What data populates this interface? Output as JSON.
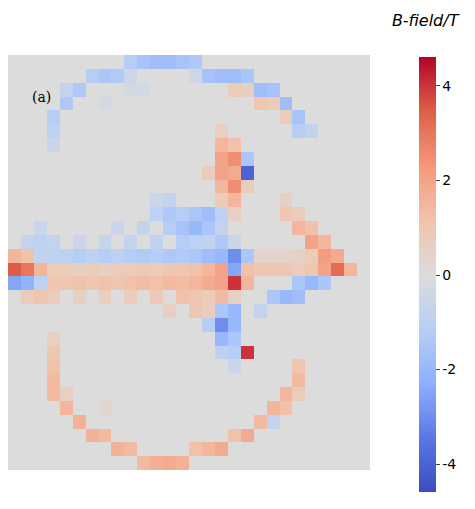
{
  "chart_data": {
    "type": "heatmap",
    "panel_label": "(a)",
    "colorbar_title": "B-field/T",
    "colorbar_range": [
      -4.6,
      4.6
    ],
    "colorbar_ticks": [
      -4,
      -2,
      0,
      2,
      4
    ],
    "tick_labels": false,
    "cells": [
      [
        0,
        0,
        0,
        0,
        0,
        0,
        0,
        0,
        0,
        -1.2,
        -1.6,
        -1.8,
        -1.8,
        -1.6,
        -1.4,
        0,
        0,
        0,
        0,
        0,
        0,
        0,
        0,
        0,
        0,
        0,
        0,
        0
      ],
      [
        0,
        0,
        0,
        0,
        0,
        0,
        -1.2,
        -1.5,
        -1.3,
        -0.5,
        0,
        0,
        0,
        0,
        -0.5,
        -1.6,
        -1.8,
        -1.8,
        -1.5,
        0,
        0,
        0,
        0,
        0,
        0,
        0,
        0,
        0
      ],
      [
        0,
        0,
        0,
        0,
        -0.8,
        -1.4,
        0,
        0,
        0,
        -0.3,
        -0.3,
        0,
        0,
        0,
        0,
        0,
        0,
        0.8,
        0.6,
        -1.8,
        -1.6,
        0,
        0,
        0,
        0,
        0,
        0,
        0
      ],
      [
        0,
        0,
        0,
        0,
        -1.4,
        0,
        0,
        -0.3,
        0,
        0,
        0,
        0,
        0,
        0,
        0,
        0,
        0,
        0,
        0,
        1.0,
        0.8,
        -1.8,
        0,
        0,
        0,
        0,
        0,
        0
      ],
      [
        0,
        0,
        0,
        -1.2,
        0,
        0,
        0,
        0,
        0,
        0,
        0,
        0,
        0,
        0,
        0,
        0,
        0,
        0,
        0,
        0,
        0,
        0.8,
        -1.6,
        0,
        0,
        0,
        0,
        0
      ],
      [
        0,
        0,
        0,
        -1.0,
        0,
        0,
        0,
        0,
        0,
        0,
        0,
        0,
        0,
        0,
        0,
        0,
        0.6,
        0,
        0,
        0,
        0,
        0,
        -1.2,
        -0.8,
        0,
        0,
        0,
        0
      ],
      [
        0,
        0,
        0,
        -0.6,
        0,
        0,
        0,
        0,
        0,
        0,
        0,
        0,
        0,
        0,
        0,
        0,
        1.5,
        1.2,
        0,
        0,
        0,
        0,
        0,
        0,
        0,
        0,
        0,
        0
      ],
      [
        0,
        0,
        0,
        0,
        0,
        0,
        0,
        0,
        0,
        0,
        0,
        0,
        0,
        0,
        0,
        0,
        2.0,
        2.5,
        -1.5,
        0,
        0,
        0,
        0,
        0,
        0,
        0,
        0,
        0
      ],
      [
        0,
        0,
        0,
        0,
        0,
        0,
        0,
        0,
        0,
        0,
        0,
        0,
        0,
        0,
        0,
        0.8,
        2.0,
        1.8,
        -4.0,
        0,
        0,
        0,
        0,
        0,
        0,
        0,
        0,
        0
      ],
      [
        0,
        0,
        0,
        0,
        0,
        0,
        0,
        0,
        0,
        0,
        0,
        0,
        0,
        0,
        0,
        0,
        1.5,
        2.5,
        0.8,
        0,
        0,
        0,
        0,
        0,
        0,
        0,
        0,
        0
      ],
      [
        0,
        0,
        0,
        0,
        0,
        0,
        0,
        0,
        0,
        0,
        0,
        -0.6,
        -0.8,
        0,
        0,
        0,
        0.8,
        1.5,
        0,
        0,
        0,
        0.6,
        0,
        0,
        0,
        0,
        0,
        0
      ],
      [
        0,
        0,
        0,
        0,
        0,
        0,
        0,
        0,
        0,
        0,
        0,
        -1.0,
        -1.4,
        -1.2,
        -1.5,
        -1.8,
        -1.0,
        0.6,
        0,
        0,
        0,
        1.0,
        0.8,
        0,
        0,
        0,
        0,
        0
      ],
      [
        0,
        0,
        -0.6,
        0,
        0,
        0,
        0,
        0,
        -0.6,
        0,
        -0.8,
        0,
        -1.2,
        -1.6,
        -2.0,
        -1.5,
        -0.8,
        0,
        0,
        0,
        0,
        0,
        1.5,
        1.2,
        0,
        0,
        0,
        0
      ],
      [
        0,
        -0.8,
        -1.0,
        -0.8,
        0,
        -0.6,
        0,
        -0.7,
        0,
        -0.8,
        0,
        -0.9,
        0,
        -1.2,
        -1.0,
        -0.8,
        -1.4,
        -0.6,
        0,
        0,
        0,
        0,
        0,
        2.0,
        1.5,
        0,
        0,
        0
      ],
      [
        1.5,
        1.2,
        -0.8,
        -1.0,
        -1.0,
        -1.2,
        -1.0,
        -1.2,
        -1.0,
        -1.2,
        -1.3,
        -1.2,
        -1.4,
        -1.3,
        -1.5,
        -1.8,
        -2.0,
        -3.0,
        -1.5,
        0.4,
        0.4,
        0.4,
        0.5,
        0.8,
        2.2,
        1.8,
        0,
        0
      ],
      [
        3.5,
        3.0,
        1.5,
        0.8,
        0.8,
        0.6,
        0.8,
        0.6,
        0.8,
        0.8,
        0.9,
        0.8,
        1.0,
        1.0,
        1.2,
        1.5,
        2.0,
        -2.5,
        1.2,
        1.0,
        1.0,
        1.0,
        0.8,
        1.0,
        2.0,
        3.2,
        1.5,
        0
      ],
      [
        -2.5,
        -2.2,
        -1.0,
        1.0,
        1.0,
        1.2,
        1.0,
        1.2,
        1.0,
        1.2,
        1.3,
        1.2,
        1.4,
        1.3,
        1.5,
        1.8,
        2.0,
        4.0,
        1.5,
        0,
        0,
        0,
        -1.5,
        -2.0,
        -1.5,
        0,
        0,
        0
      ],
      [
        0,
        0.8,
        1.0,
        0.8,
        0,
        0.6,
        0,
        0.7,
        0,
        0.8,
        0,
        0.9,
        0,
        1.2,
        1.0,
        0.8,
        1.4,
        0.6,
        0,
        0,
        -1.5,
        -2.0,
        -1.8,
        0,
        0,
        0,
        0,
        0
      ],
      [
        0,
        0,
        0,
        0,
        0,
        0,
        0,
        0,
        0,
        0,
        0,
        0,
        0.6,
        0,
        1.0,
        0.8,
        -1.5,
        -2.0,
        0,
        -0.8,
        0,
        0,
        0,
        0,
        0,
        0,
        0,
        0
      ],
      [
        0,
        0,
        0,
        0,
        0,
        0,
        0,
        0,
        0,
        0,
        0,
        0,
        0,
        0,
        0,
        -1.2,
        -3.0,
        -2.0,
        0,
        0,
        0,
        0,
        0,
        0,
        0,
        0,
        0,
        0
      ],
      [
        0,
        0,
        0,
        0.6,
        0,
        0,
        0,
        0,
        0,
        0,
        0,
        0,
        0,
        0,
        0,
        0,
        -2.0,
        -1.5,
        0,
        0,
        0,
        0,
        0,
        0,
        0,
        0,
        0,
        0
      ],
      [
        0,
        0,
        0,
        1.0,
        0,
        0,
        0,
        0,
        0,
        0,
        0,
        0,
        0,
        0,
        0,
        0,
        -1.0,
        -1.2,
        4.0,
        0,
        0,
        0,
        0,
        0,
        0,
        0,
        0,
        0
      ],
      [
        0,
        0,
        0,
        1.2,
        0,
        0,
        0,
        0,
        0,
        0,
        0,
        0,
        0,
        0,
        0,
        0,
        0,
        -0.6,
        0,
        0,
        0,
        0,
        1.0,
        0,
        0,
        0,
        0,
        0
      ],
      [
        0,
        0,
        0,
        1.4,
        0,
        0,
        0,
        0,
        0,
        0,
        0,
        0,
        0,
        0,
        0,
        0,
        0,
        0,
        0,
        0,
        0,
        0,
        1.4,
        0,
        0,
        0,
        0,
        0
      ],
      [
        0,
        0,
        0,
        1.4,
        0.6,
        0,
        0,
        0,
        0,
        0,
        0,
        0,
        0,
        0,
        0,
        0,
        0,
        0,
        0,
        0,
        0,
        1.5,
        0.8,
        0,
        0,
        0,
        0,
        0
      ],
      [
        0,
        0,
        0,
        0,
        1.5,
        0,
        0,
        0.3,
        0,
        0,
        0,
        0,
        0,
        0,
        0,
        0,
        0,
        0,
        0,
        0,
        1.5,
        1.2,
        0,
        0,
        0,
        0,
        0,
        0
      ],
      [
        0,
        0,
        0,
        0,
        0,
        1.6,
        0,
        0,
        0,
        0,
        0,
        0,
        0,
        0,
        0,
        0,
        0,
        0,
        0,
        1.4,
        -0.8,
        0,
        0,
        0,
        0,
        0,
        0,
        0
      ],
      [
        0,
        0,
        0,
        0,
        0,
        0,
        1.6,
        1.4,
        0,
        0,
        0,
        0,
        0,
        0,
        0,
        0,
        0,
        1.2,
        1.8,
        0,
        0,
        0,
        0,
        0,
        0,
        0,
        0,
        0
      ],
      [
        0,
        0,
        0,
        0,
        0,
        0,
        0,
        0,
        1.6,
        1.4,
        0,
        0,
        0,
        0,
        1.2,
        1.5,
        1.8,
        0,
        0,
        0,
        0,
        0,
        0,
        0,
        0,
        0,
        0,
        0
      ],
      [
        0,
        0,
        0,
        0,
        0,
        0,
        0,
        0,
        0,
        0,
        1.4,
        1.7,
        1.8,
        1.6,
        0,
        0,
        0,
        0,
        0,
        0,
        0,
        0,
        0,
        0,
        0,
        0,
        0,
        0
      ]
    ]
  }
}
